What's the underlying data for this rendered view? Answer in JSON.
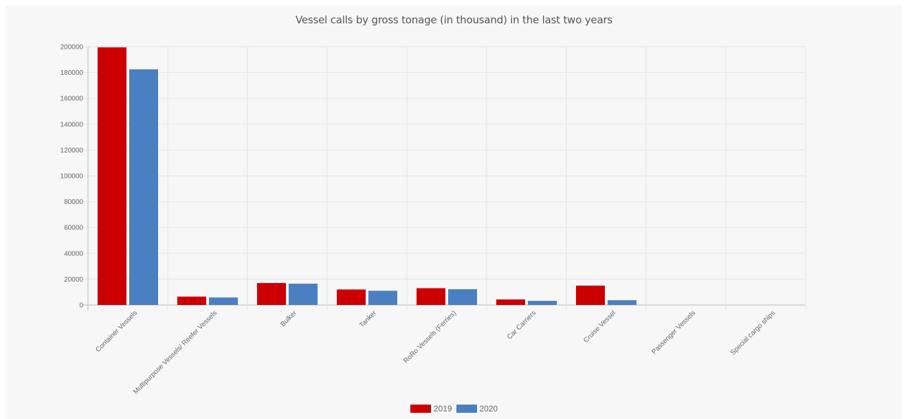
{
  "chart_data": {
    "type": "bar",
    "title": "Vessel calls by gross tonage (in thousand) in the last two years",
    "xlabel": "",
    "ylabel": "",
    "ylim": [
      0,
      200000
    ],
    "y_ticks": [
      "0",
      "20000",
      "40000",
      "60000",
      "80000",
      "100000",
      "120000",
      "140000",
      "160000",
      "180000",
      "200000"
    ],
    "categories": [
      "Container Vessels",
      "Multipurpose Vessels/ Reefer Vessels",
      "Bulker",
      "Tanker",
      "RoRo Vessels (Ferries)",
      "Car Carriers",
      "Cruise Vessel",
      "Passenger Vessels",
      "Special cargo ships"
    ],
    "series": [
      {
        "name": "2019",
        "color": "#cc0000",
        "values": [
          199500,
          6500,
          17000,
          12000,
          13000,
          4300,
          15000,
          0,
          0
        ]
      },
      {
        "name": "2020",
        "color": "#4a80c2",
        "values": [
          182500,
          5800,
          16500,
          11000,
          12200,
          3200,
          3700,
          0,
          0
        ]
      }
    ],
    "grid": true,
    "legend_position": "bottom"
  }
}
